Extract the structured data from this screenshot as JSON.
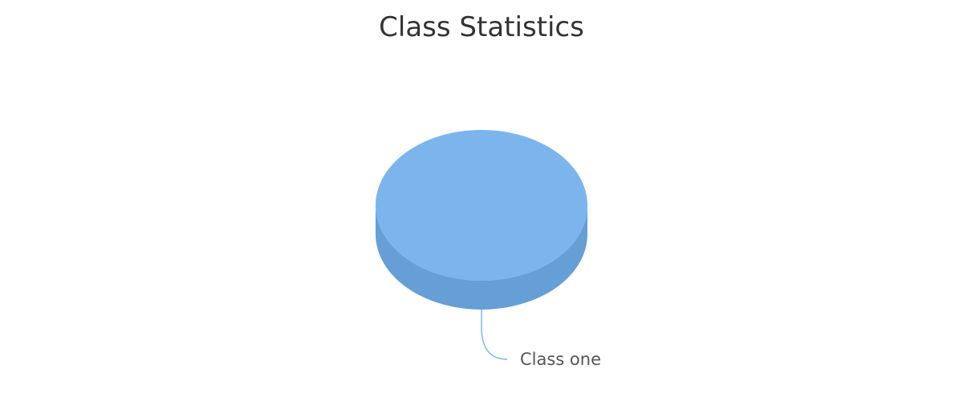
{
  "chart_data": {
    "type": "pie",
    "title": "Class Statistics",
    "three_d": true,
    "series": [
      {
        "slices": [
          {
            "label": "Class one",
            "value": 100,
            "color": "#7cb5ec",
            "side_color": "#659fd6"
          }
        ]
      }
    ],
    "legend": "none"
  }
}
